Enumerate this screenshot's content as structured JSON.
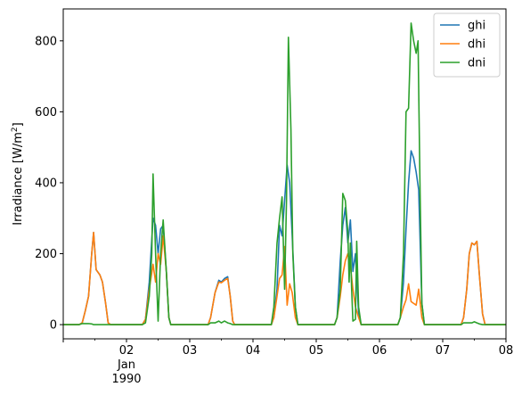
{
  "chart_data": {
    "type": "line",
    "title": "",
    "xlabel": "",
    "ylabel": "Irradiance [W/m",
    "ylabel_superscript": "2",
    "ylabel_suffix": "]",
    "xlim": [
      0,
      7
    ],
    "ylim": [
      -40,
      890
    ],
    "grid": false,
    "legend_position": "top-right",
    "x_ticks": [
      {
        "x": 0,
        "label": ""
      },
      {
        "x": 1,
        "label": "02",
        "sublabel": "Jan",
        "sublabel2": "1990"
      },
      {
        "x": 2,
        "label": "03"
      },
      {
        "x": 3,
        "label": "04"
      },
      {
        "x": 4,
        "label": "05"
      },
      {
        "x": 5,
        "label": "06"
      },
      {
        "x": 6,
        "label": "07"
      },
      {
        "x": 7,
        "label": "08"
      }
    ],
    "y_ticks": [
      0,
      200,
      400,
      600,
      800
    ],
    "series": [
      {
        "name": "ghi",
        "color": "#1f77b4",
        "points": [
          [
            0,
            0
          ],
          [
            0.25,
            0
          ],
          [
            0.3,
            5
          ],
          [
            0.35,
            40
          ],
          [
            0.4,
            80
          ],
          [
            0.45,
            200
          ],
          [
            0.48,
            260
          ],
          [
            0.52,
            155
          ],
          [
            0.58,
            140
          ],
          [
            0.62,
            120
          ],
          [
            0.67,
            60
          ],
          [
            0.71,
            5
          ],
          [
            0.75,
            0
          ],
          [
            1.25,
            0
          ],
          [
            1.3,
            15
          ],
          [
            1.36,
            120
          ],
          [
            1.42,
            300
          ],
          [
            1.46,
            280
          ],
          [
            1.5,
            200
          ],
          [
            1.54,
            270
          ],
          [
            1.58,
            280
          ],
          [
            1.63,
            150
          ],
          [
            1.67,
            20
          ],
          [
            1.7,
            0
          ],
          [
            2.29,
            0
          ],
          [
            2.33,
            20
          ],
          [
            2.4,
            90
          ],
          [
            2.46,
            125
          ],
          [
            2.5,
            120
          ],
          [
            2.55,
            130
          ],
          [
            2.6,
            135
          ],
          [
            2.64,
            80
          ],
          [
            2.68,
            10
          ],
          [
            2.71,
            0
          ],
          [
            3.29,
            0
          ],
          [
            3.33,
            20
          ],
          [
            3.38,
            100
          ],
          [
            3.42,
            280
          ],
          [
            3.46,
            250
          ],
          [
            3.5,
            350
          ],
          [
            3.54,
            450
          ],
          [
            3.58,
            400
          ],
          [
            3.62,
            250
          ],
          [
            3.67,
            50
          ],
          [
            3.71,
            0
          ],
          [
            4.29,
            0
          ],
          [
            4.33,
            20
          ],
          [
            4.38,
            180
          ],
          [
            4.42,
            280
          ],
          [
            4.46,
            330
          ],
          [
            4.5,
            230
          ],
          [
            4.54,
            295
          ],
          [
            4.58,
            150
          ],
          [
            4.62,
            200
          ],
          [
            4.67,
            30
          ],
          [
            4.71,
            0
          ],
          [
            5.29,
            0
          ],
          [
            5.33,
            20
          ],
          [
            5.38,
            120
          ],
          [
            5.42,
            270
          ],
          [
            5.46,
            400
          ],
          [
            5.5,
            490
          ],
          [
            5.54,
            470
          ],
          [
            5.58,
            430
          ],
          [
            5.62,
            380
          ],
          [
            5.67,
            60
          ],
          [
            5.71,
            0
          ],
          [
            6.29,
            0
          ],
          [
            6.33,
            20
          ],
          [
            6.38,
            100
          ],
          [
            6.42,
            200
          ],
          [
            6.46,
            230
          ],
          [
            6.5,
            225
          ],
          [
            6.54,
            235
          ],
          [
            6.58,
            140
          ],
          [
            6.63,
            30
          ],
          [
            6.67,
            0
          ],
          [
            7,
            0
          ]
        ]
      },
      {
        "name": "dhi",
        "color": "#ff7f0e",
        "points": [
          [
            0,
            0
          ],
          [
            0.25,
            0
          ],
          [
            0.3,
            5
          ],
          [
            0.35,
            40
          ],
          [
            0.4,
            80
          ],
          [
            0.45,
            200
          ],
          [
            0.48,
            260
          ],
          [
            0.52,
            155
          ],
          [
            0.58,
            140
          ],
          [
            0.62,
            120
          ],
          [
            0.67,
            60
          ],
          [
            0.71,
            5
          ],
          [
            0.75,
            0
          ],
          [
            1.25,
            0
          ],
          [
            1.3,
            15
          ],
          [
            1.36,
            100
          ],
          [
            1.42,
            170
          ],
          [
            1.46,
            120
          ],
          [
            1.5,
            200
          ],
          [
            1.54,
            170
          ],
          [
            1.58,
            250
          ],
          [
            1.63,
            150
          ],
          [
            1.67,
            20
          ],
          [
            1.7,
            0
          ],
          [
            2.29,
            0
          ],
          [
            2.33,
            20
          ],
          [
            2.4,
            90
          ],
          [
            2.46,
            120
          ],
          [
            2.5,
            118
          ],
          [
            2.55,
            125
          ],
          [
            2.6,
            130
          ],
          [
            2.64,
            80
          ],
          [
            2.68,
            10
          ],
          [
            2.71,
            0
          ],
          [
            3.29,
            0
          ],
          [
            3.33,
            20
          ],
          [
            3.38,
            80
          ],
          [
            3.42,
            130
          ],
          [
            3.46,
            140
          ],
          [
            3.5,
            220
          ],
          [
            3.54,
            55
          ],
          [
            3.58,
            115
          ],
          [
            3.62,
            90
          ],
          [
            3.67,
            20
          ],
          [
            3.71,
            0
          ],
          [
            4.29,
            0
          ],
          [
            4.33,
            20
          ],
          [
            4.38,
            80
          ],
          [
            4.42,
            140
          ],
          [
            4.46,
            180
          ],
          [
            4.5,
            200
          ],
          [
            4.54,
            165
          ],
          [
            4.58,
            100
          ],
          [
            4.62,
            50
          ],
          [
            4.67,
            20
          ],
          [
            4.71,
            0
          ],
          [
            5.29,
            0
          ],
          [
            5.33,
            20
          ],
          [
            5.38,
            50
          ],
          [
            5.42,
            70
          ],
          [
            5.46,
            115
          ],
          [
            5.5,
            65
          ],
          [
            5.54,
            60
          ],
          [
            5.58,
            55
          ],
          [
            5.62,
            100
          ],
          [
            5.67,
            20
          ],
          [
            5.71,
            0
          ],
          [
            6.29,
            0
          ],
          [
            6.33,
            20
          ],
          [
            6.38,
            100
          ],
          [
            6.42,
            200
          ],
          [
            6.46,
            230
          ],
          [
            6.5,
            225
          ],
          [
            6.54,
            235
          ],
          [
            6.58,
            140
          ],
          [
            6.63,
            30
          ],
          [
            6.67,
            0
          ],
          [
            7,
            0
          ]
        ]
      },
      {
        "name": "dni",
        "color": "#2ca02c",
        "points": [
          [
            0,
            0
          ],
          [
            0.25,
            0
          ],
          [
            0.3,
            3
          ],
          [
            0.35,
            3
          ],
          [
            0.4,
            3
          ],
          [
            0.45,
            2
          ],
          [
            0.48,
            0
          ],
          [
            0.52,
            0
          ],
          [
            0.58,
            0
          ],
          [
            0.62,
            0
          ],
          [
            0.75,
            0
          ],
          [
            1.25,
            0
          ],
          [
            1.3,
            5
          ],
          [
            1.36,
            80
          ],
          [
            1.4,
            200
          ],
          [
            1.42,
            425
          ],
          [
            1.46,
            200
          ],
          [
            1.5,
            10
          ],
          [
            1.54,
            200
          ],
          [
            1.58,
            295
          ],
          [
            1.63,
            150
          ],
          [
            1.67,
            20
          ],
          [
            1.7,
            0
          ],
          [
            2.29,
            0
          ],
          [
            2.33,
            5
          ],
          [
            2.4,
            5
          ],
          [
            2.46,
            10
          ],
          [
            2.5,
            5
          ],
          [
            2.55,
            10
          ],
          [
            2.6,
            5
          ],
          [
            2.64,
            3
          ],
          [
            2.68,
            0
          ],
          [
            3.29,
            0
          ],
          [
            3.33,
            50
          ],
          [
            3.38,
            230
          ],
          [
            3.42,
            300
          ],
          [
            3.46,
            360
          ],
          [
            3.5,
            100
          ],
          [
            3.53,
            350
          ],
          [
            3.56,
            810
          ],
          [
            3.6,
            550
          ],
          [
            3.63,
            200
          ],
          [
            3.67,
            50
          ],
          [
            3.71,
            0
          ],
          [
            4.29,
            0
          ],
          [
            4.33,
            20
          ],
          [
            4.38,
            100
          ],
          [
            4.42,
            370
          ],
          [
            4.46,
            350
          ],
          [
            4.5,
            260
          ],
          [
            4.52,
            120
          ],
          [
            4.54,
            230
          ],
          [
            4.56,
            100
          ],
          [
            4.58,
            10
          ],
          [
            4.62,
            15
          ],
          [
            4.64,
            235
          ],
          [
            4.67,
            50
          ],
          [
            4.71,
            0
          ],
          [
            5.29,
            0
          ],
          [
            5.33,
            20
          ],
          [
            5.38,
            200
          ],
          [
            5.42,
            600
          ],
          [
            5.46,
            610
          ],
          [
            5.5,
            850
          ],
          [
            5.54,
            800
          ],
          [
            5.58,
            765
          ],
          [
            5.61,
            800
          ],
          [
            5.64,
            400
          ],
          [
            5.67,
            60
          ],
          [
            5.71,
            0
          ],
          [
            6.29,
            0
          ],
          [
            6.33,
            5
          ],
          [
            6.38,
            5
          ],
          [
            6.42,
            5
          ],
          [
            6.46,
            5
          ],
          [
            6.5,
            8
          ],
          [
            6.54,
            5
          ],
          [
            6.58,
            2
          ],
          [
            6.63,
            0
          ],
          [
            7,
            0
          ]
        ]
      }
    ]
  }
}
